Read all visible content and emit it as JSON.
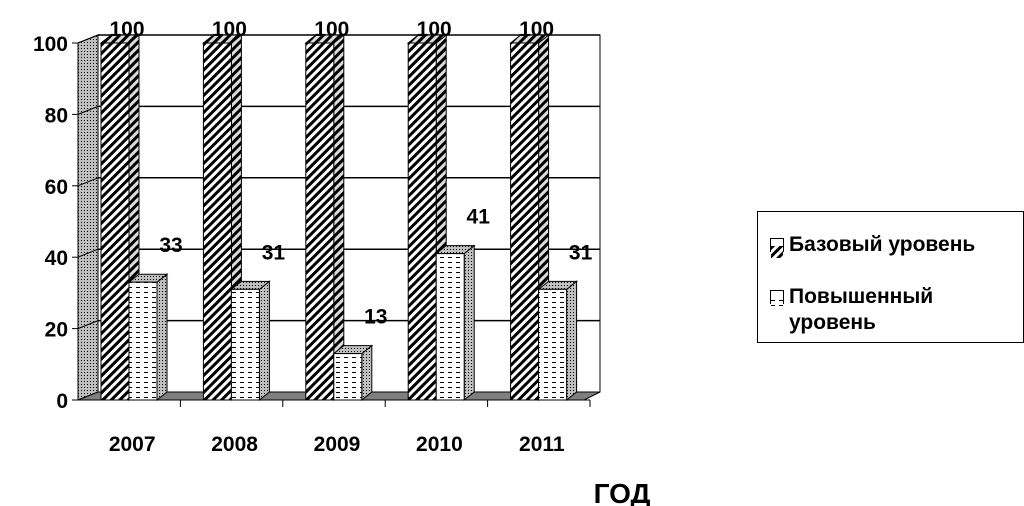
{
  "chart_data": {
    "type": "bar",
    "categories": [
      "2007",
      "2008",
      "2009",
      "2010",
      "2011"
    ],
    "series": [
      {
        "name": "Базовый уровень",
        "values": [
          100,
          100,
          100,
          100,
          100
        ],
        "pattern": "diagonal-hatch"
      },
      {
        "name": "Повышенный уровень",
        "values": [
          33,
          31,
          13,
          41,
          31
        ],
        "pattern": "dashed-horizontal"
      }
    ],
    "data_labels": {
      "series_0": [
        "100",
        "100",
        "100",
        "100",
        "100"
      ],
      "series_1": [
        "33",
        "31",
        "13",
        "41",
        "31"
      ]
    },
    "xlabel": "ГОД",
    "ylabel": "",
    "ylim": [
      0,
      100
    ],
    "yticks": [
      "0",
      "20",
      "40",
      "60",
      "80",
      "100"
    ],
    "grid": true,
    "legend_position": "right",
    "style": "3d-clustered-column",
    "colors": {
      "bar_fill": "#ffffff",
      "hatch": "#000000",
      "wall": "#ffffff",
      "side_wall": "#c0c0c0",
      "floor": "#808080"
    }
  }
}
